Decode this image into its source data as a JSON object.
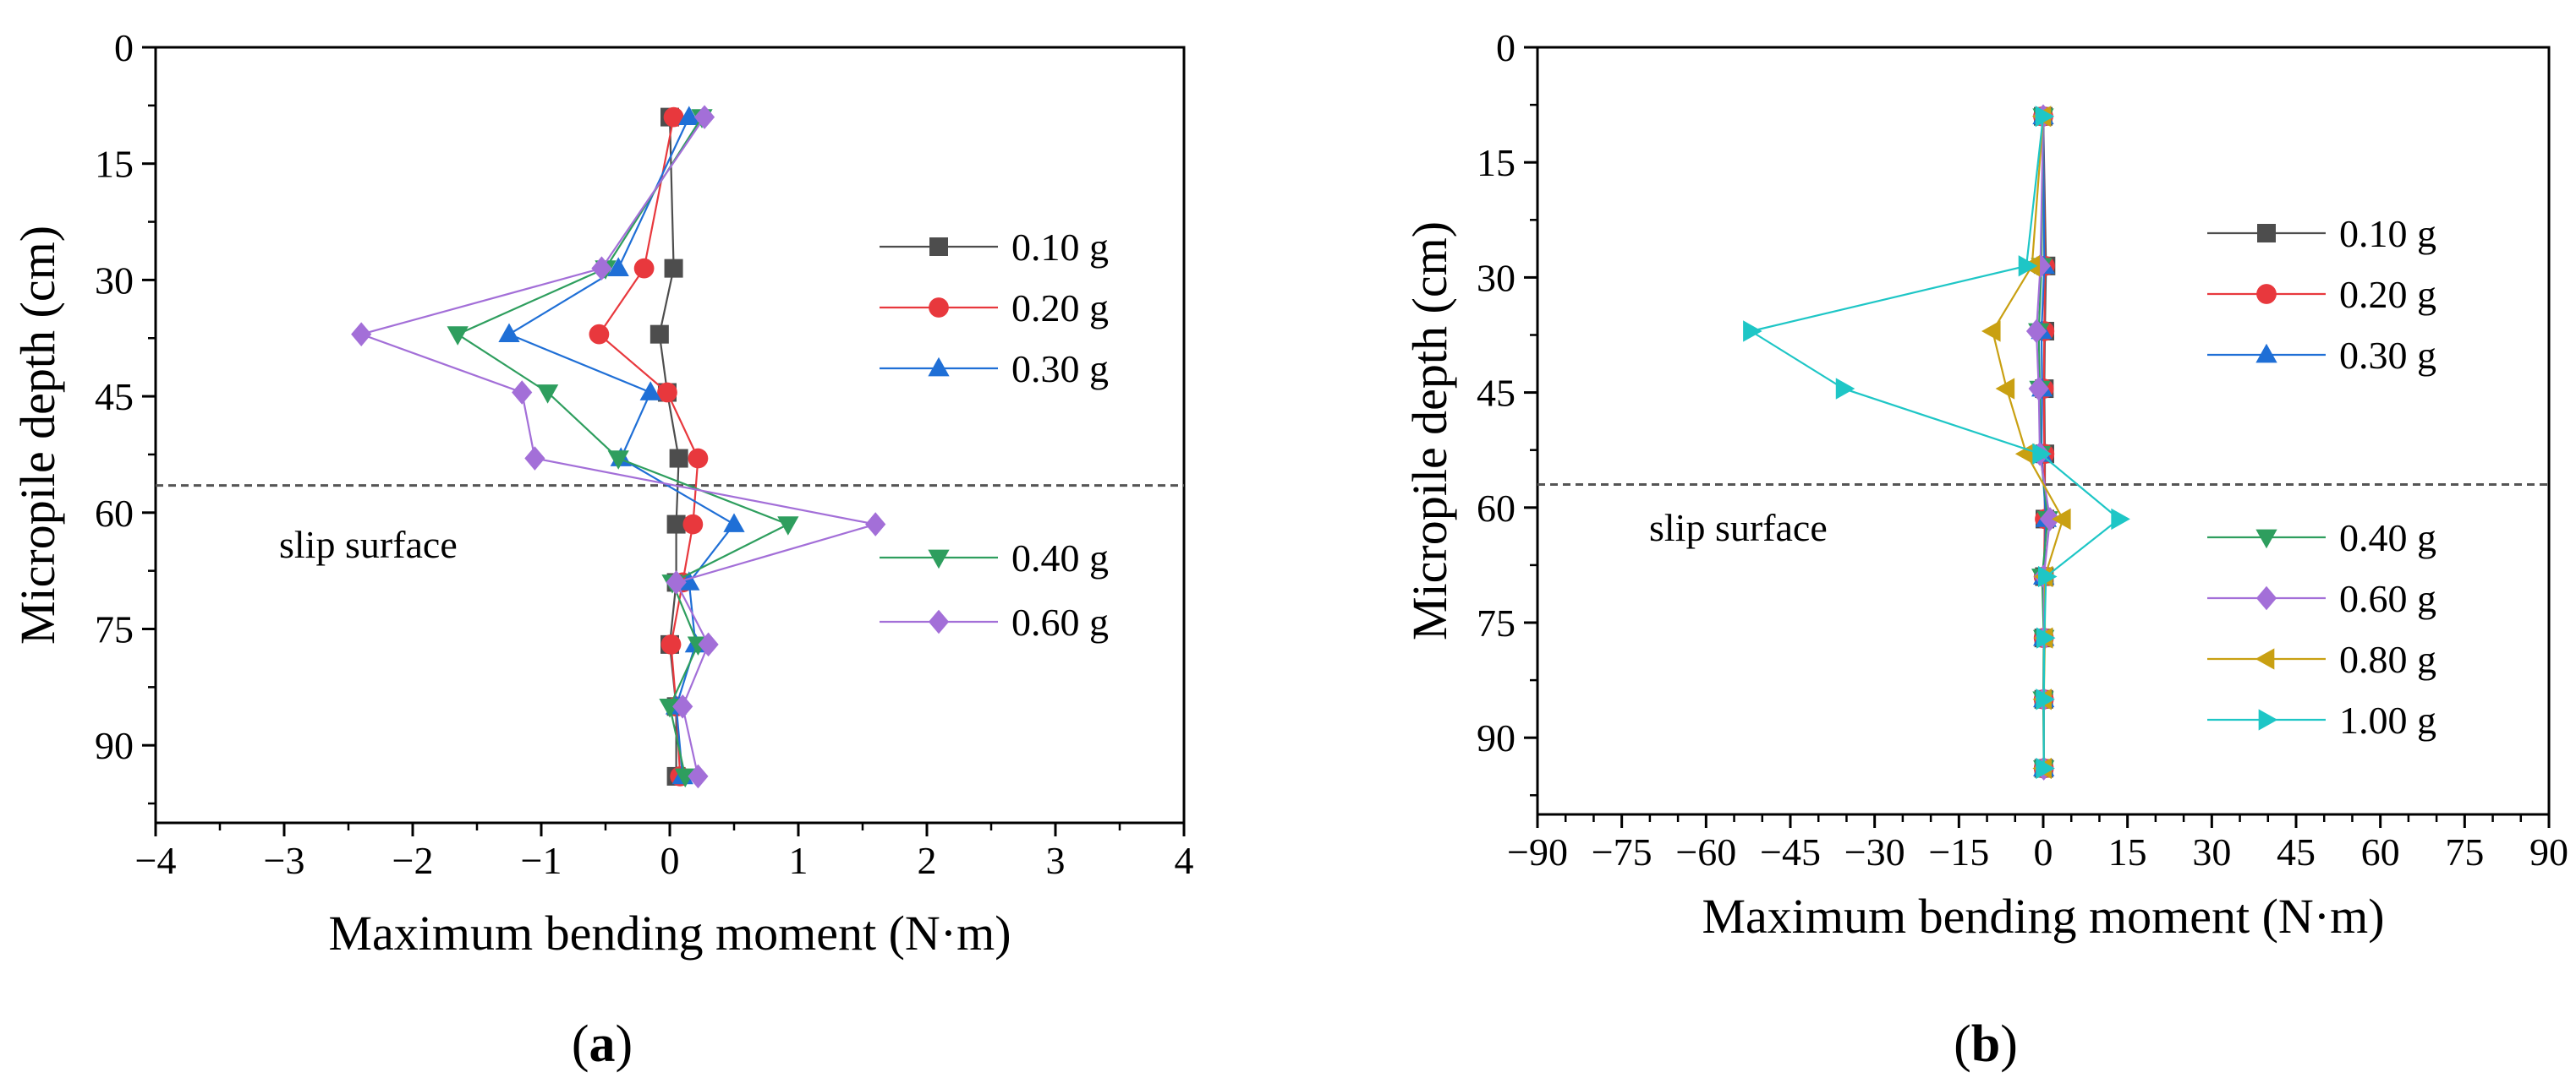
{
  "chart_data": [
    {
      "type": "line",
      "panel": "a",
      "panel_label": "a",
      "xlabel": "Maximum bending moment (N·m)",
      "ylabel": "Micropile depth (cm)",
      "xlim": [
        -4,
        4
      ],
      "ylim": [
        0,
        100
      ],
      "y_inverted": true,
      "xticks": [
        -4,
        -3,
        -2,
        -1,
        0,
        1,
        2,
        3,
        4
      ],
      "xtick_labels": [
        "−4",
        "−3",
        "−2",
        "−1",
        "0",
        "1",
        "2",
        "3",
        "4"
      ],
      "yticks": [
        0,
        15,
        30,
        45,
        60,
        75,
        90
      ],
      "ytick_labels": [
        "0",
        "15",
        "30",
        "45",
        "60",
        "75",
        "90"
      ],
      "depths": [
        9,
        28.5,
        37,
        44.5,
        53,
        61.5,
        69,
        77,
        85,
        94
      ],
      "slip_surface": {
        "depth": 56.5,
        "label": "slip surface"
      },
      "series": [
        {
          "name": "0.10 g",
          "color": "#4d4d4d",
          "marker": "square",
          "values": [
            0,
            0.03,
            -0.08,
            -0.02,
            0.07,
            0.05,
            0.05,
            0.0,
            0.05,
            0.05
          ]
        },
        {
          "name": "0.20 g",
          "color": "#e8383d",
          "marker": "circle",
          "values": [
            0.03,
            -0.2,
            -0.55,
            -0.02,
            0.22,
            0.18,
            0.1,
            0.01,
            0.05,
            0.08
          ]
        },
        {
          "name": "0.30 g",
          "color": "#1f6fd6",
          "marker": "triangle-up",
          "values": [
            0.15,
            -0.4,
            -1.25,
            -0.15,
            -0.38,
            0.5,
            0.15,
            0.2,
            0.05,
            0.1
          ]
        },
        {
          "name": "0.40 g",
          "color": "#2e9e5e",
          "marker": "triangle-down",
          "values": [
            0.25,
            -0.5,
            -1.65,
            -0.95,
            -0.4,
            0.92,
            0.02,
            0.22,
            0.0,
            0.12
          ]
        },
        {
          "name": "0.60 g",
          "color": "#a36fd8",
          "marker": "diamond",
          "values": [
            0.27,
            -0.53,
            -2.4,
            -1.15,
            -1.05,
            1.6,
            0.05,
            0.3,
            0.1,
            0.22
          ]
        }
      ],
      "legend_groups": [
        [
          "0.10 g",
          "0.20 g",
          "0.30 g"
        ],
        [
          "0.40 g",
          "0.60 g"
        ]
      ]
    },
    {
      "type": "line",
      "panel": "b",
      "panel_label": "b",
      "xlabel": "Maximum bending moment (N·m)",
      "ylabel": "Micropile depth (cm)",
      "xlim": [
        -90,
        90
      ],
      "ylim": [
        0,
        100
      ],
      "y_inverted": true,
      "xticks": [
        -90,
        -75,
        -60,
        -45,
        -30,
        -15,
        0,
        15,
        30,
        45,
        60,
        75,
        90
      ],
      "xtick_labels": [
        "−90",
        "−75",
        "−60",
        "−45",
        "−30",
        "−15",
        "0",
        "15",
        "30",
        "45",
        "60",
        "75",
        "90"
      ],
      "yticks": [
        0,
        15,
        30,
        45,
        60,
        75,
        90
      ],
      "ytick_labels": [
        "0",
        "15",
        "30",
        "45",
        "60",
        "75",
        "90"
      ],
      "depths": [
        9,
        28.5,
        37,
        44.5,
        53,
        61.5,
        69,
        77,
        85,
        94
      ],
      "slip_surface": {
        "depth": 57,
        "label": "slip surface"
      },
      "series": [
        {
          "name": "0.10 g",
          "color": "#4d4d4d",
          "marker": "square",
          "values": [
            0,
            0.5,
            0.3,
            0.2,
            0.3,
            0.3,
            0.2,
            0.1,
            0.1,
            0.1
          ]
        },
        {
          "name": "0.20 g",
          "color": "#e8383d",
          "marker": "circle",
          "values": [
            0,
            0.3,
            0.2,
            0.1,
            0.2,
            0.3,
            0.1,
            0.1,
            0.1,
            0.1
          ]
        },
        {
          "name": "0.30 g",
          "color": "#1f6fd6",
          "marker": "triangle-up",
          "values": [
            0,
            0.2,
            -0.3,
            -0.2,
            -0.3,
            0.5,
            0.1,
            0.1,
            0.1,
            0.1
          ]
        },
        {
          "name": "0.40 g",
          "color": "#2e9e5e",
          "marker": "triangle-down",
          "values": [
            0,
            -0.3,
            -0.8,
            -0.6,
            -0.5,
            0.8,
            -0.2,
            0.1,
            0.0,
            0.1
          ]
        },
        {
          "name": "0.60 g",
          "color": "#a36fd8",
          "marker": "diamond",
          "values": [
            0,
            -0.5,
            -1.2,
            -0.8,
            -0.6,
            1.2,
            0.1,
            0.2,
            0.1,
            0.1
          ]
        },
        {
          "name": "0.80 g",
          "color": "#c9a012",
          "marker": "triangle-left",
          "values": [
            0,
            -2.0,
            -9.0,
            -6.5,
            -3.0,
            3.5,
            0.3,
            0.3,
            0.1,
            0.1
          ]
        },
        {
          "name": "1.00 g",
          "color": "#1ec6c6",
          "marker": "triangle-right",
          "values": [
            0,
            -3.0,
            -52.0,
            -35.5,
            -0.5,
            13.5,
            0.5,
            0.2,
            0.1,
            0.1
          ]
        }
      ],
      "legend_groups": [
        [
          "0.10 g",
          "0.20 g",
          "0.30 g"
        ],
        [
          "0.40 g",
          "0.60 g",
          "0.80 g",
          "1.00 g"
        ]
      ]
    }
  ]
}
